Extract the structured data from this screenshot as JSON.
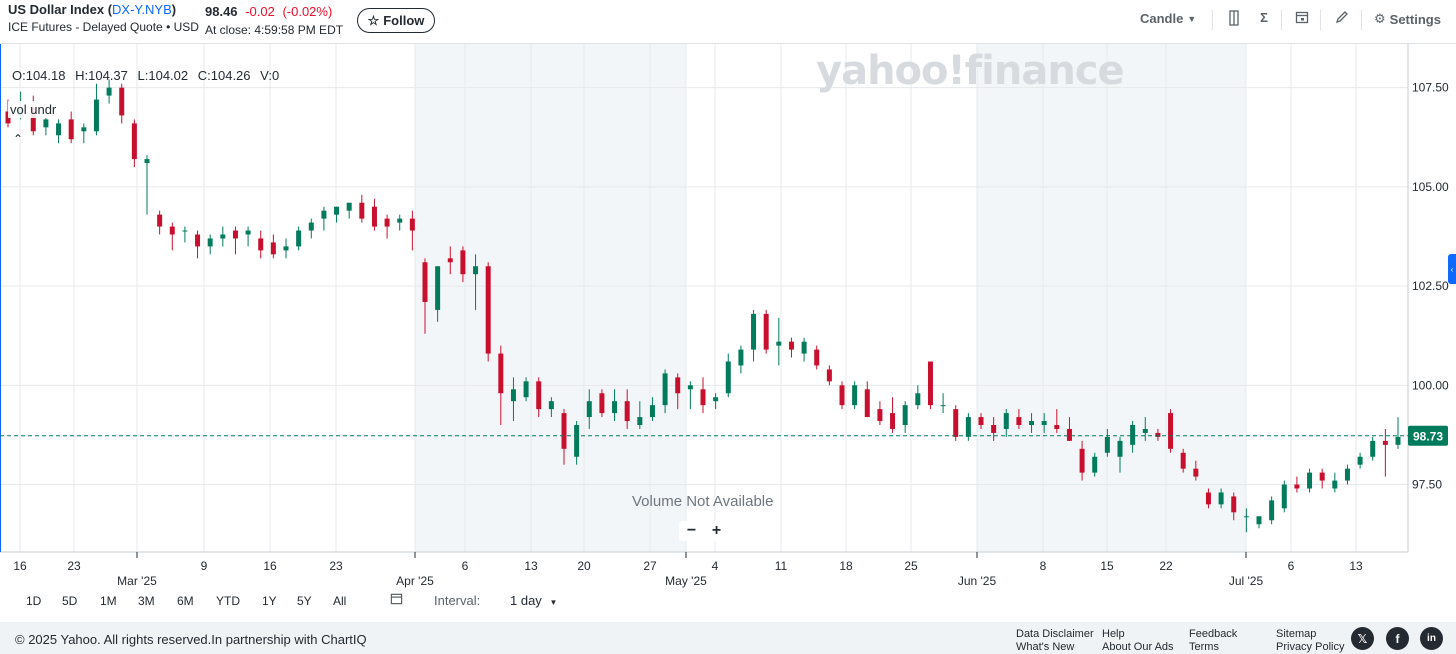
{
  "header": {
    "title_prefix": "US Dollar Index (",
    "symbol": "DX-Y.NYB",
    "title_suffix": ")",
    "subtitle": "ICE Futures - Delayed Quote • USD",
    "price": "98.46",
    "change": "-0.02",
    "change_pct": "(-0.02%)",
    "close_time": "At close: 4:59:58 PM EDT",
    "follow_label": "Follow",
    "chart_type": "Candle",
    "settings_label": "Settings",
    "icons": [
      "star-icon",
      "chevron-down-icon",
      "compare-icon",
      "sigma-icon",
      "calendar-icon",
      "pencil-icon",
      "gear-icon"
    ]
  },
  "chart_data": {
    "type": "candlestick",
    "ohlc_readout": {
      "open": "O:104.18",
      "high": "H:104.37",
      "low": "L:104.02",
      "close": "C:104.26",
      "volume": "V:0"
    },
    "study_label": "vol undr",
    "volume_note": "Volume Not Available",
    "current_price_label": "98.73",
    "current_price": 98.73,
    "y_ticks": [
      "107.50",
      "105.00",
      "102.50",
      "100.00",
      "97.50"
    ],
    "y_tick_values": [
      107.5,
      105.0,
      102.5,
      100.0,
      97.5
    ],
    "ylim": [
      95.8,
      108.6
    ],
    "x_day_labels": [
      "16",
      "23",
      "9",
      "16",
      "23",
      "6",
      "13",
      "20",
      "27",
      "4",
      "11",
      "18",
      "25",
      "8",
      "15",
      "22",
      "6",
      "13"
    ],
    "x_month_labels": [
      "Mar '25",
      "Apr '25",
      "May '25",
      "Jun '25",
      "Jul '25"
    ],
    "candles": [
      {
        "o": 106.9,
        "h": 107.2,
        "l": 106.5,
        "c": 106.6
      },
      {
        "o": 106.8,
        "h": 107.4,
        "l": 106.7,
        "c": 107.0
      },
      {
        "o": 107.0,
        "h": 107.3,
        "l": 106.3,
        "c": 106.4
      },
      {
        "o": 106.5,
        "h": 106.8,
        "l": 106.3,
        "c": 106.7
      },
      {
        "o": 106.3,
        "h": 106.7,
        "l": 106.1,
        "c": 106.6
      },
      {
        "o": 106.7,
        "h": 106.9,
        "l": 106.1,
        "c": 106.2
      },
      {
        "o": 106.4,
        "h": 106.6,
        "l": 106.1,
        "c": 106.5
      },
      {
        "o": 106.4,
        "h": 107.6,
        "l": 106.3,
        "c": 107.2
      },
      {
        "o": 107.3,
        "h": 107.7,
        "l": 107.1,
        "c": 107.5
      },
      {
        "o": 107.5,
        "h": 107.6,
        "l": 106.6,
        "c": 106.8
      },
      {
        "o": 106.6,
        "h": 106.7,
        "l": 105.5,
        "c": 105.7
      },
      {
        "o": 105.6,
        "h": 105.8,
        "l": 104.3,
        "c": 105.7
      },
      {
        "o": 104.3,
        "h": 104.4,
        "l": 103.8,
        "c": 104.0
      },
      {
        "o": 104.0,
        "h": 104.1,
        "l": 103.4,
        "c": 103.8
      },
      {
        "o": 103.9,
        "h": 104.0,
        "l": 103.6,
        "c": 103.9
      },
      {
        "o": 103.8,
        "h": 103.9,
        "l": 103.2,
        "c": 103.5
      },
      {
        "o": 103.5,
        "h": 103.8,
        "l": 103.3,
        "c": 103.7
      },
      {
        "o": 103.7,
        "h": 104.0,
        "l": 103.5,
        "c": 103.8
      },
      {
        "o": 103.9,
        "h": 104.0,
        "l": 103.3,
        "c": 103.7
      },
      {
        "o": 103.8,
        "h": 104.0,
        "l": 103.5,
        "c": 103.9
      },
      {
        "o": 103.7,
        "h": 103.9,
        "l": 103.2,
        "c": 103.4
      },
      {
        "o": 103.6,
        "h": 103.8,
        "l": 103.2,
        "c": 103.3
      },
      {
        "o": 103.4,
        "h": 103.7,
        "l": 103.2,
        "c": 103.5
      },
      {
        "o": 103.5,
        "h": 104.0,
        "l": 103.4,
        "c": 103.9
      },
      {
        "o": 103.9,
        "h": 104.2,
        "l": 103.7,
        "c": 104.1
      },
      {
        "o": 104.2,
        "h": 104.5,
        "l": 103.9,
        "c": 104.4
      },
      {
        "o": 104.3,
        "h": 104.5,
        "l": 104.1,
        "c": 104.5
      },
      {
        "o": 104.4,
        "h": 104.6,
        "l": 104.2,
        "c": 104.6
      },
      {
        "o": 104.6,
        "h": 104.8,
        "l": 104.1,
        "c": 104.2
      },
      {
        "o": 104.5,
        "h": 104.7,
        "l": 103.9,
        "c": 104.0
      },
      {
        "o": 104.2,
        "h": 104.3,
        "l": 103.7,
        "c": 104.0
      },
      {
        "o": 104.1,
        "h": 104.3,
        "l": 103.9,
        "c": 104.2
      },
      {
        "o": 104.2,
        "h": 104.4,
        "l": 103.4,
        "c": 103.9
      },
      {
        "o": 103.1,
        "h": 103.2,
        "l": 101.3,
        "c": 102.1
      },
      {
        "o": 101.9,
        "h": 103.0,
        "l": 101.6,
        "c": 103.0
      },
      {
        "o": 103.2,
        "h": 103.5,
        "l": 102.8,
        "c": 103.1
      },
      {
        "o": 103.4,
        "h": 103.5,
        "l": 102.6,
        "c": 102.8
      },
      {
        "o": 102.8,
        "h": 103.3,
        "l": 101.9,
        "c": 103.0
      },
      {
        "o": 103.0,
        "h": 103.1,
        "l": 100.6,
        "c": 100.8
      },
      {
        "o": 100.8,
        "h": 101.0,
        "l": 99.0,
        "c": 99.8
      },
      {
        "o": 99.6,
        "h": 100.2,
        "l": 99.1,
        "c": 99.9
      },
      {
        "o": 99.7,
        "h": 100.2,
        "l": 99.6,
        "c": 100.1
      },
      {
        "o": 100.1,
        "h": 100.2,
        "l": 99.2,
        "c": 99.4
      },
      {
        "o": 99.4,
        "h": 99.7,
        "l": 99.2,
        "c": 99.6
      },
      {
        "o": 99.3,
        "h": 99.4,
        "l": 98.0,
        "c": 98.4
      },
      {
        "o": 98.2,
        "h": 99.1,
        "l": 98.0,
        "c": 99.0
      },
      {
        "o": 99.2,
        "h": 99.9,
        "l": 98.9,
        "c": 99.6
      },
      {
        "o": 99.8,
        "h": 99.9,
        "l": 99.2,
        "c": 99.3
      },
      {
        "o": 99.3,
        "h": 99.9,
        "l": 99.1,
        "c": 99.6
      },
      {
        "o": 99.6,
        "h": 99.9,
        "l": 98.9,
        "c": 99.1
      },
      {
        "o": 99.0,
        "h": 99.6,
        "l": 98.9,
        "c": 99.2
      },
      {
        "o": 99.2,
        "h": 99.7,
        "l": 99.1,
        "c": 99.5
      },
      {
        "o": 99.5,
        "h": 100.4,
        "l": 99.3,
        "c": 100.3
      },
      {
        "o": 100.2,
        "h": 100.3,
        "l": 99.4,
        "c": 99.8
      },
      {
        "o": 99.9,
        "h": 100.1,
        "l": 99.4,
        "c": 100.0
      },
      {
        "o": 99.9,
        "h": 100.2,
        "l": 99.3,
        "c": 99.5
      },
      {
        "o": 99.6,
        "h": 99.8,
        "l": 99.4,
        "c": 99.7
      },
      {
        "o": 99.8,
        "h": 100.8,
        "l": 99.7,
        "c": 100.6
      },
      {
        "o": 100.5,
        "h": 101.0,
        "l": 100.3,
        "c": 100.9
      },
      {
        "o": 100.9,
        "h": 101.9,
        "l": 100.6,
        "c": 101.8
      },
      {
        "o": 101.8,
        "h": 101.9,
        "l": 100.8,
        "c": 100.9
      },
      {
        "o": 101.0,
        "h": 101.7,
        "l": 100.5,
        "c": 101.1
      },
      {
        "o": 101.1,
        "h": 101.2,
        "l": 100.7,
        "c": 100.9
      },
      {
        "o": 100.8,
        "h": 101.2,
        "l": 100.6,
        "c": 101.1
      },
      {
        "o": 100.9,
        "h": 101.0,
        "l": 100.4,
        "c": 100.5
      },
      {
        "o": 100.4,
        "h": 100.5,
        "l": 100.0,
        "c": 100.1
      },
      {
        "o": 100.0,
        "h": 100.1,
        "l": 99.4,
        "c": 99.5
      },
      {
        "o": 99.5,
        "h": 100.1,
        "l": 99.4,
        "c": 100.0
      },
      {
        "o": 99.9,
        "h": 100.1,
        "l": 99.2,
        "c": 99.2
      },
      {
        "o": 99.4,
        "h": 99.6,
        "l": 99.0,
        "c": 99.1
      },
      {
        "o": 99.3,
        "h": 99.7,
        "l": 98.8,
        "c": 98.9
      },
      {
        "o": 99.0,
        "h": 99.6,
        "l": 98.8,
        "c": 99.5
      },
      {
        "o": 99.5,
        "h": 100.0,
        "l": 99.4,
        "c": 99.8
      },
      {
        "o": 100.6,
        "h": 100.6,
        "l": 99.4,
        "c": 99.5
      },
      {
        "o": 99.5,
        "h": 99.8,
        "l": 99.3,
        "c": 99.5
      },
      {
        "o": 99.4,
        "h": 99.5,
        "l": 98.6,
        "c": 98.7
      },
      {
        "o": 98.7,
        "h": 99.3,
        "l": 98.6,
        "c": 99.2
      },
      {
        "o": 99.2,
        "h": 99.3,
        "l": 98.9,
        "c": 99.0
      },
      {
        "o": 99.0,
        "h": 99.2,
        "l": 98.6,
        "c": 98.8
      },
      {
        "o": 98.9,
        "h": 99.4,
        "l": 98.7,
        "c": 99.3
      },
      {
        "o": 99.2,
        "h": 99.4,
        "l": 98.9,
        "c": 99.0
      },
      {
        "o": 99.0,
        "h": 99.3,
        "l": 98.8,
        "c": 99.1
      },
      {
        "o": 99.0,
        "h": 99.3,
        "l": 98.8,
        "c": 99.1
      },
      {
        "o": 99.0,
        "h": 99.4,
        "l": 98.8,
        "c": 98.9
      },
      {
        "o": 98.9,
        "h": 99.2,
        "l": 98.6,
        "c": 98.6
      },
      {
        "o": 98.4,
        "h": 98.6,
        "l": 97.6,
        "c": 97.8
      },
      {
        "o": 97.8,
        "h": 98.3,
        "l": 97.7,
        "c": 98.2
      },
      {
        "o": 98.3,
        "h": 98.9,
        "l": 98.2,
        "c": 98.7
      },
      {
        "o": 98.2,
        "h": 98.7,
        "l": 97.8,
        "c": 98.6
      },
      {
        "o": 98.5,
        "h": 99.1,
        "l": 98.3,
        "c": 99.0
      },
      {
        "o": 98.8,
        "h": 99.2,
        "l": 98.6,
        "c": 98.9
      },
      {
        "o": 98.8,
        "h": 98.9,
        "l": 98.6,
        "c": 98.7
      },
      {
        "o": 99.3,
        "h": 99.4,
        "l": 98.3,
        "c": 98.4
      },
      {
        "o": 98.3,
        "h": 98.4,
        "l": 97.8,
        "c": 97.9
      },
      {
        "o": 97.9,
        "h": 98.1,
        "l": 97.6,
        "c": 97.7
      },
      {
        "o": 97.3,
        "h": 97.4,
        "l": 96.9,
        "c": 97.0
      },
      {
        "o": 97.0,
        "h": 97.4,
        "l": 96.9,
        "c": 97.3
      },
      {
        "o": 97.2,
        "h": 97.3,
        "l": 96.6,
        "c": 96.8
      },
      {
        "o": 96.7,
        "h": 96.9,
        "l": 96.3,
        "c": 96.7
      },
      {
        "o": 96.5,
        "h": 96.7,
        "l": 96.4,
        "c": 96.7
      },
      {
        "o": 96.6,
        "h": 97.2,
        "l": 96.5,
        "c": 97.1
      },
      {
        "o": 96.9,
        "h": 97.6,
        "l": 96.8,
        "c": 97.5
      },
      {
        "o": 97.5,
        "h": 97.7,
        "l": 97.3,
        "c": 97.4
      },
      {
        "o": 97.4,
        "h": 97.9,
        "l": 97.3,
        "c": 97.8
      },
      {
        "o": 97.8,
        "h": 97.9,
        "l": 97.4,
        "c": 97.6
      },
      {
        "o": 97.4,
        "h": 97.8,
        "l": 97.3,
        "c": 97.6
      },
      {
        "o": 97.6,
        "h": 98.0,
        "l": 97.5,
        "c": 97.9
      },
      {
        "o": 98.0,
        "h": 98.3,
        "l": 97.9,
        "c": 98.2
      },
      {
        "o": 98.2,
        "h": 98.7,
        "l": 98.1,
        "c": 98.6
      },
      {
        "o": 98.6,
        "h": 98.9,
        "l": 97.7,
        "c": 98.5
      },
      {
        "o": 98.5,
        "h": 99.2,
        "l": 98.4,
        "c": 98.7
      }
    ]
  },
  "watermark": "yahoo!finance",
  "range_bar": {
    "ranges": [
      "1D",
      "5D",
      "1M",
      "3M",
      "6M",
      "YTD",
      "1Y",
      "5Y",
      "All"
    ],
    "interval_label": "Interval:",
    "interval_value": "1 day"
  },
  "footer": {
    "copyright": "© 2025 Yahoo. All rights reserved.In partnership with ChartIQ",
    "links": [
      [
        "Data Disclaimer",
        "What's New"
      ],
      [
        "Help",
        "About Our Ads"
      ],
      [
        "Feedback",
        "Terms"
      ],
      [
        "Sitemap",
        "Privacy Policy"
      ]
    ],
    "social": [
      "x-icon",
      "facebook-icon",
      "linkedin-icon"
    ]
  },
  "colors": {
    "up": "#017b5c",
    "down": "#c8102e",
    "accent": "#0f69ff",
    "shade": "#f3f6f9",
    "price_line": "#017b5c"
  }
}
